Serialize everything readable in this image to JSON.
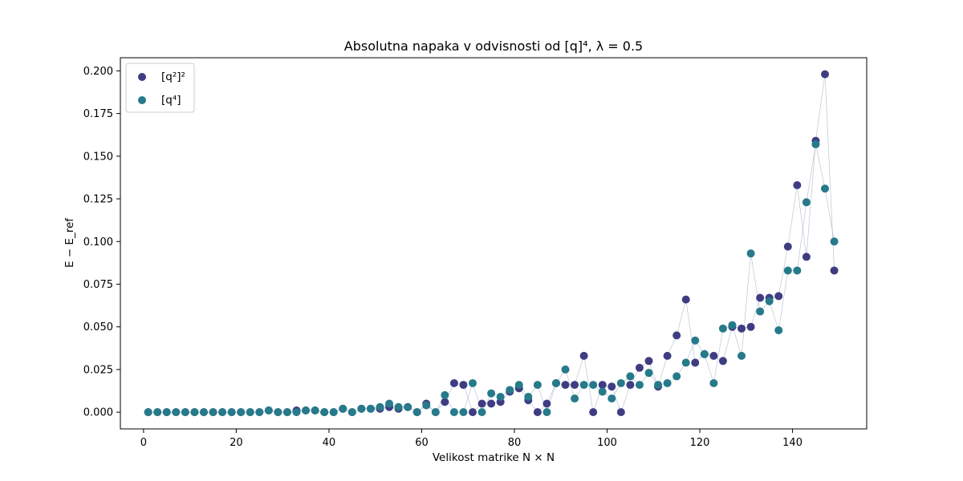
{
  "chart_data": {
    "type": "scatter",
    "title": "Absolutna napaka v odvisnosti od [q]⁴, λ = 0.5",
    "xlabel": "Velikost matrike N × N",
    "ylabel": "E − E_ref",
    "xlim": [
      -5,
      156
    ],
    "ylim": [
      -0.0098,
      0.2077
    ],
    "xticks": [
      0,
      20,
      40,
      60,
      80,
      100,
      120,
      140
    ],
    "yticks": [
      0.0,
      0.025,
      0.05,
      0.075,
      0.1,
      0.125,
      0.15,
      0.175,
      0.2
    ],
    "ytick_labels": [
      "0.000",
      "0.025",
      "0.050",
      "0.075",
      "0.100",
      "0.125",
      "0.150",
      "0.175",
      "0.200"
    ],
    "legend_position": "top-left",
    "x": [
      1,
      3,
      5,
      7,
      9,
      11,
      13,
      15,
      17,
      19,
      21,
      23,
      25,
      27,
      29,
      31,
      33,
      35,
      37,
      39,
      41,
      43,
      45,
      47,
      49,
      51,
      53,
      55,
      57,
      59,
      61,
      63,
      65,
      67,
      69,
      71,
      73,
      75,
      77,
      79,
      81,
      83,
      85,
      87,
      89,
      91,
      93,
      95,
      97,
      99,
      101,
      103,
      105,
      107,
      109,
      111,
      113,
      115,
      117,
      119,
      121,
      123,
      125,
      127,
      129,
      131,
      133,
      135,
      137,
      139,
      141,
      143,
      145,
      147,
      149
    ],
    "series": [
      {
        "name": "[q²]²",
        "color": "#3f3d82",
        "values": [
          0,
          0,
          0,
          0,
          0,
          0,
          0,
          0,
          0,
          0,
          0,
          0,
          0,
          0.001,
          0,
          0,
          0.001,
          0.001,
          0.001,
          0,
          0,
          0.002,
          0,
          0.002,
          0.002,
          0.002,
          0.003,
          0.002,
          0.003,
          0,
          0.005,
          0,
          0.006,
          0.017,
          0.016,
          0,
          0.005,
          0.005,
          0.006,
          0.012,
          0.014,
          0.007,
          0,
          0.005,
          0.017,
          0.016,
          0.016,
          0.033,
          0,
          0.016,
          0.015,
          0,
          0.016,
          0.026,
          0.03,
          0.015,
          0.033,
          0.045,
          0.066,
          0.029,
          0.034,
          0.033,
          0.03,
          0.05,
          0.049,
          0.05,
          0.067,
          0.067,
          0.068,
          0.097,
          0.133,
          0.091,
          0.159,
          0.198,
          0.083
        ]
      },
      {
        "name": "[q⁴]",
        "color": "#267a8a",
        "values": [
          0,
          0,
          0,
          0,
          0,
          0,
          0,
          0,
          0,
          0,
          0,
          0,
          0,
          0.001,
          0,
          0,
          0,
          0.001,
          0.001,
          0,
          0,
          0.002,
          0,
          0.002,
          0.002,
          0.003,
          0.005,
          0.003,
          0.003,
          0,
          0.004,
          0,
          0.01,
          0,
          0,
          0.017,
          0,
          0.011,
          0.009,
          0.013,
          0.016,
          0.009,
          0.016,
          0,
          0.017,
          0.025,
          0.008,
          0.016,
          0.016,
          0.012,
          0.008,
          0.017,
          0.021,
          0.016,
          0.023,
          0.016,
          0.017,
          0.021,
          0.029,
          0.042,
          0.034,
          0.017,
          0.049,
          0.051,
          0.033,
          0.093,
          0.059,
          0.065,
          0.048,
          0.083,
          0.083,
          0.123,
          0.157,
          0.131,
          0.1
        ]
      }
    ]
  }
}
